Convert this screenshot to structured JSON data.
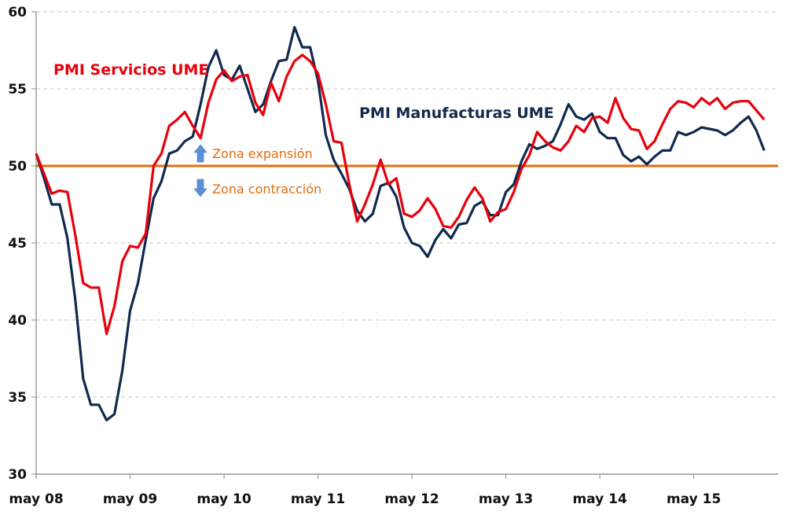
{
  "chart_data": {
    "type": "line",
    "title": "",
    "xlabel": "",
    "ylabel": "",
    "ylim": [
      30,
      60
    ],
    "yticks": [
      "30",
      "35",
      "40",
      "45",
      "50",
      "55",
      "60"
    ],
    "xtick_labels": [
      "may 08",
      "may 09",
      "may 10",
      "may 11",
      "may 12",
      "may 13",
      "may 14",
      "may 15"
    ],
    "grid": "horizontal dashed",
    "x": [
      "2008-05",
      "2008-06",
      "2008-07",
      "2008-08",
      "2008-09",
      "2008-10",
      "2008-11",
      "2008-12",
      "2009-01",
      "2009-02",
      "2009-03",
      "2009-04",
      "2009-05",
      "2009-06",
      "2009-07",
      "2009-08",
      "2009-09",
      "2009-10",
      "2009-11",
      "2009-12",
      "2010-01",
      "2010-02",
      "2010-03",
      "2010-04",
      "2010-05",
      "2010-06",
      "2010-07",
      "2010-08",
      "2010-09",
      "2010-10",
      "2010-11",
      "2010-12",
      "2011-01",
      "2011-02",
      "2011-03",
      "2011-04",
      "2011-05",
      "2011-06",
      "2011-07",
      "2011-08",
      "2011-09",
      "2011-10",
      "2011-11",
      "2011-12",
      "2012-01",
      "2012-02",
      "2012-03",
      "2012-04",
      "2012-05",
      "2012-06",
      "2012-07",
      "2012-08",
      "2012-09",
      "2012-10",
      "2012-11",
      "2012-12",
      "2013-01",
      "2013-02",
      "2013-03",
      "2013-04",
      "2013-05",
      "2013-06",
      "2013-07",
      "2013-08",
      "2013-09",
      "2013-10",
      "2013-11",
      "2013-12",
      "2014-01",
      "2014-02",
      "2014-03",
      "2014-04",
      "2014-05",
      "2014-06",
      "2014-07",
      "2014-08",
      "2014-09",
      "2014-10",
      "2014-11",
      "2014-12",
      "2015-01",
      "2015-02",
      "2015-03",
      "2015-04",
      "2015-05",
      "2015-06",
      "2015-07",
      "2015-08",
      "2015-09",
      "2015-10",
      "2015-11",
      "2015-12",
      "2016-01",
      "2016-02"
    ],
    "series": [
      {
        "name": "PMI Servicios UME",
        "color": "#e8000b",
        "values": [
          50.8,
          49.5,
          48.2,
          48.4,
          48.3,
          45.5,
          42.4,
          42.1,
          42.1,
          39.1,
          40.9,
          43.8,
          44.8,
          44.7,
          45.6,
          50.0,
          50.8,
          52.6,
          53.0,
          53.5,
          52.6,
          51.8,
          54.1,
          55.6,
          56.2,
          55.5,
          55.8,
          55.9,
          54.1,
          53.3,
          55.4,
          54.2,
          55.8,
          56.8,
          57.2,
          56.8,
          56.0,
          54.0,
          51.6,
          51.5,
          48.8,
          46.4,
          47.5,
          48.8,
          50.4,
          48.8,
          49.2,
          46.9,
          46.7,
          47.1,
          47.9,
          47.2,
          46.1,
          46.0,
          46.7,
          47.8,
          48.6,
          47.9,
          46.4,
          47.0,
          47.2,
          48.3,
          49.8,
          50.7,
          52.2,
          51.6,
          51.2,
          51.0,
          51.6,
          52.6,
          52.2,
          53.1,
          53.2,
          52.8,
          54.4,
          53.1,
          52.4,
          52.3,
          51.1,
          51.6,
          52.7,
          53.7,
          54.2,
          54.1,
          53.8,
          54.4,
          54.0,
          54.4,
          53.7,
          54.1,
          54.2,
          54.2,
          53.6,
          53.0
        ]
      },
      {
        "name": "PMI Manufacturas UME",
        "color": "#0f2a4e",
        "values": [
          50.8,
          49.2,
          47.5,
          47.5,
          45.3,
          41.3,
          36.2,
          34.5,
          34.5,
          33.5,
          33.9,
          36.7,
          40.6,
          42.4,
          45.2,
          47.9,
          49.0,
          50.8,
          51.0,
          51.6,
          51.9,
          54.0,
          56.4,
          57.5,
          55.9,
          55.6,
          56.5,
          55.0,
          53.5,
          54.0,
          55.5,
          56.8,
          56.9,
          59.0,
          57.7,
          57.7,
          55.5,
          52.0,
          50.4,
          49.5,
          48.5,
          47.1,
          46.4,
          46.9,
          48.7,
          48.9,
          48.0,
          46.0,
          45.0,
          44.8,
          44.1,
          45.2,
          45.9,
          45.3,
          46.2,
          46.3,
          47.4,
          47.7,
          46.8,
          46.8,
          48.3,
          48.8,
          50.3,
          51.4,
          51.1,
          51.3,
          51.6,
          52.7,
          54.0,
          53.2,
          53.0,
          53.4,
          52.2,
          51.8,
          51.8,
          50.7,
          50.3,
          50.6,
          50.1,
          50.6,
          51.0,
          51.0,
          52.2,
          52.0,
          52.2,
          52.5,
          52.4,
          52.3,
          52.0,
          52.3,
          52.8,
          53.2,
          52.3,
          51.0
        ]
      }
    ],
    "reference_line": {
      "value": 50,
      "color": "#e46c0a"
    },
    "annotations": {
      "expansion": "Zona expansión",
      "contraction": "Zona contracción",
      "arrow_color": "#5b8fd6"
    }
  }
}
